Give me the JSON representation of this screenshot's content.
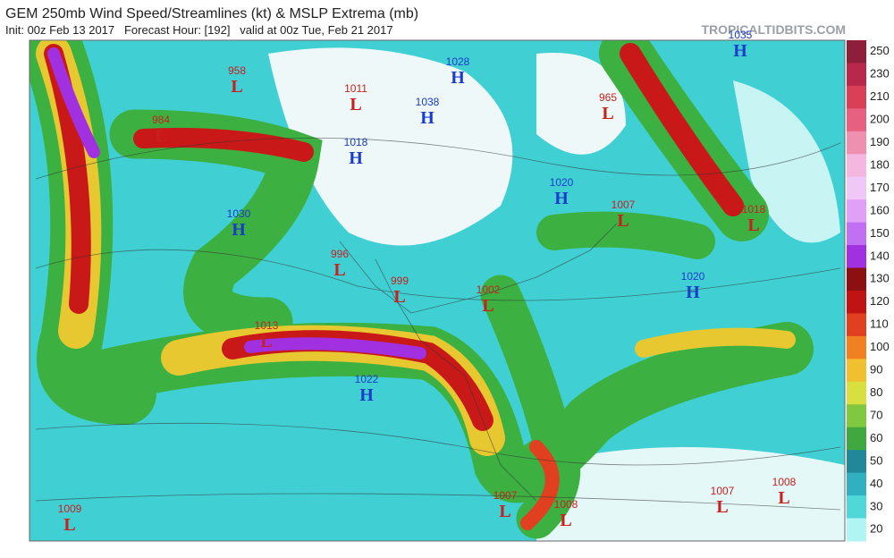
{
  "header": {
    "title": "GEM 250mb Wind Speed/Streamlines (kt) & MSLP Extrema (mb)",
    "subtitle": "Init: 00z Feb 13 2017   Forecast Hour: [192]   valid at 00z Tue, Feb 21 2017",
    "source": "TROPICALTIDBITS.COM"
  },
  "pressure_centers": [
    {
      "value": "958",
      "kind": "L"
    },
    {
      "value": "984",
      "kind": "L"
    },
    {
      "value": "1011",
      "kind": "L"
    },
    {
      "value": "1028",
      "kind": "H"
    },
    {
      "value": "1038",
      "kind": "H"
    },
    {
      "value": "1018",
      "kind": "H"
    },
    {
      "value": "965",
      "kind": "L"
    },
    {
      "value": "1035",
      "kind": "H"
    },
    {
      "value": "1030",
      "kind": "H"
    },
    {
      "value": "996",
      "kind": "L"
    },
    {
      "value": "999",
      "kind": "L"
    },
    {
      "value": "1002",
      "kind": "L"
    },
    {
      "value": "1020",
      "kind": "H"
    },
    {
      "value": "1007",
      "kind": "L"
    },
    {
      "value": "1018",
      "kind": "L"
    },
    {
      "value": "1020",
      "kind": "H"
    },
    {
      "value": "1013",
      "kind": "L"
    },
    {
      "value": "1022",
      "kind": "H"
    },
    {
      "value": "1007",
      "kind": "L"
    },
    {
      "value": "1008",
      "kind": "L"
    },
    {
      "value": "1007",
      "kind": "L"
    },
    {
      "value": "1008",
      "kind": "L"
    },
    {
      "value": "1009",
      "kind": "L"
    }
  ],
  "colorbar": {
    "ticks": [
      250,
      230,
      210,
      200,
      190,
      180,
      170,
      160,
      150,
      140,
      130,
      120,
      110,
      100,
      90,
      80,
      70,
      60,
      50,
      40,
      30,
      20
    ],
    "colors": [
      "#8e1f3a",
      "#b8284a",
      "#d84058",
      "#e86080",
      "#f090b0",
      "#f4b8e0",
      "#f0c8f8",
      "#e0a0f8",
      "#c070f0",
      "#a030e0",
      "#8c1010",
      "#c01414",
      "#e04020",
      "#f08020",
      "#f0c030",
      "#d8e040",
      "#80c840",
      "#40a840",
      "#208898",
      "#30b0c0",
      "#50d8d8",
      "#b0f4f4"
    ]
  }
}
